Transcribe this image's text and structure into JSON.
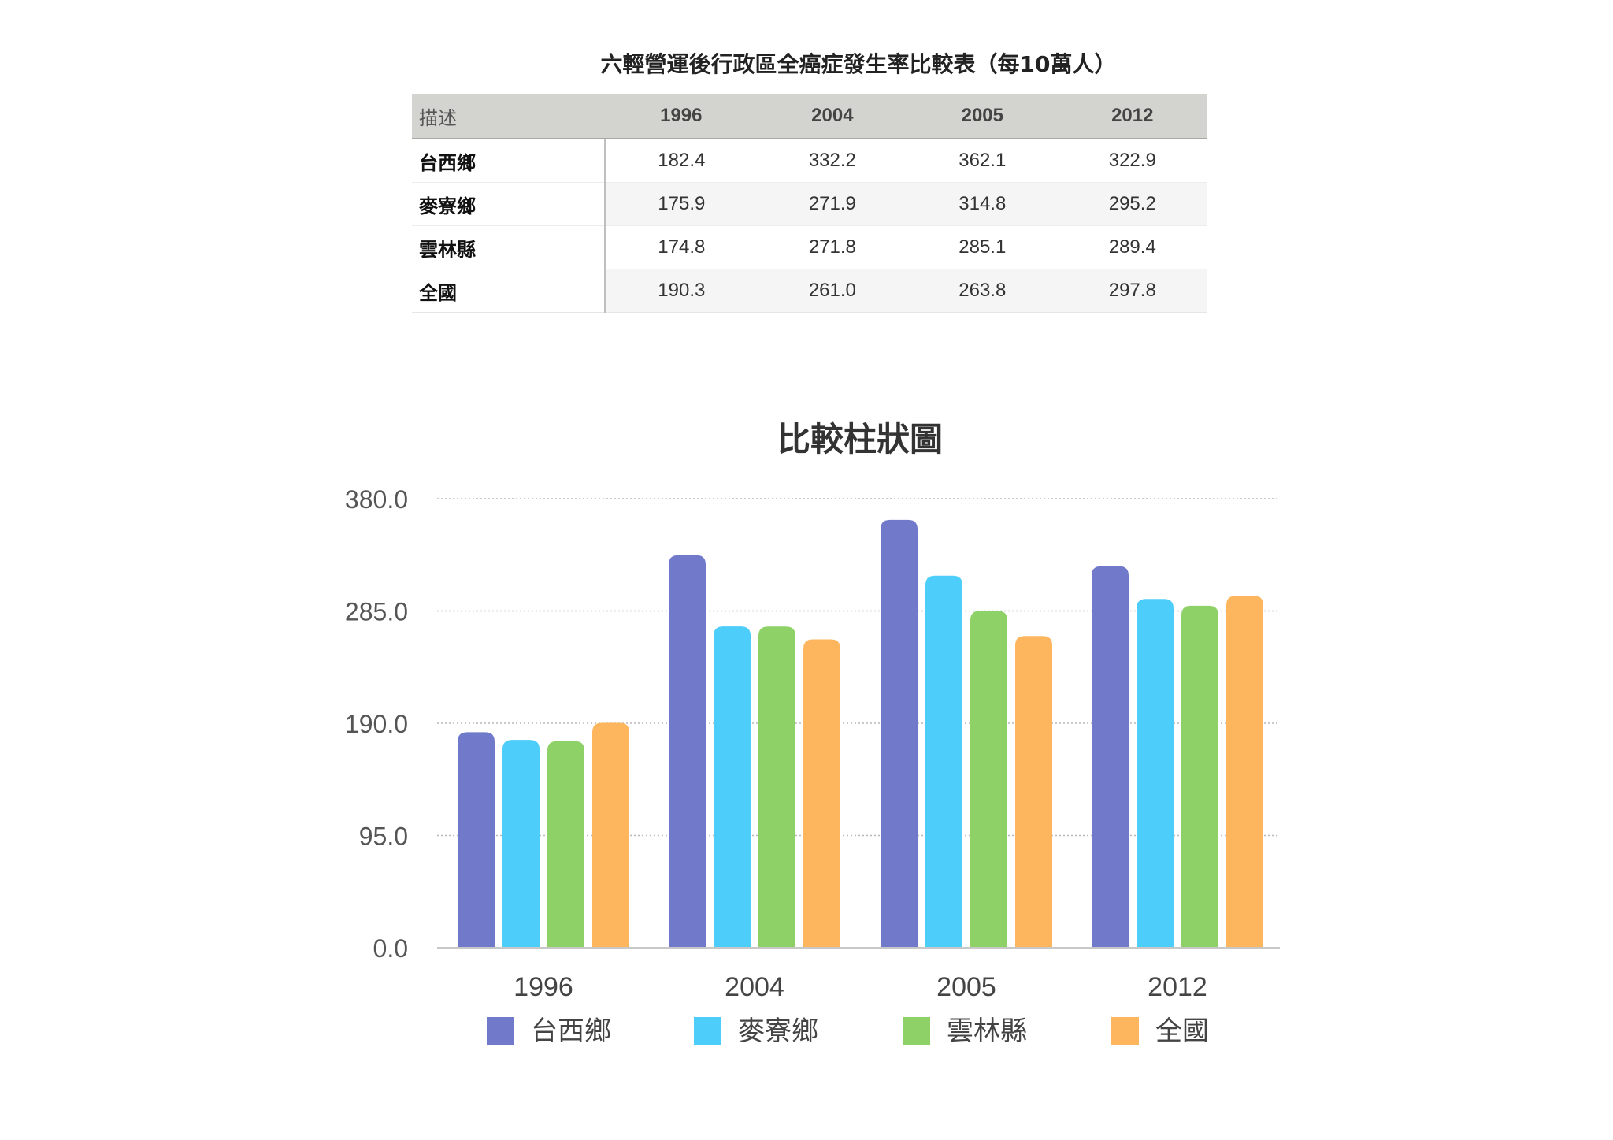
{
  "table": {
    "title": "六輕營運後行政區全癌症發生率比較表（每10萬人）",
    "header_desc": "描述",
    "years": [
      "1996",
      "2004",
      "2005",
      "2012"
    ],
    "rows": [
      {
        "label": "台西鄉",
        "values": [
          "182.4",
          "332.2",
          "362.1",
          "322.9"
        ]
      },
      {
        "label": "麥寮鄉",
        "values": [
          "175.9",
          "271.9",
          "314.8",
          "295.2"
        ]
      },
      {
        "label": "雲林縣",
        "values": [
          "174.8",
          "271.8",
          "285.1",
          "289.4"
        ]
      },
      {
        "label": "全國",
        "values": [
          "190.3",
          "261.0",
          "263.8",
          "297.8"
        ]
      }
    ]
  },
  "chart_data": {
    "type": "bar",
    "title": "比較柱狀圖",
    "categories": [
      "1996",
      "2004",
      "2005",
      "2012"
    ],
    "series": [
      {
        "name": "台西鄉",
        "values": [
          182.4,
          332.2,
          362.1,
          322.9
        ],
        "color": "#7179cb"
      },
      {
        "name": "麥寮鄉",
        "values": [
          175.9,
          271.9,
          314.8,
          295.2
        ],
        "color": "#4dcdf9"
      },
      {
        "name": "雲林縣",
        "values": [
          174.8,
          271.8,
          285.1,
          289.4
        ],
        "color": "#8dd167"
      },
      {
        "name": "全國",
        "values": [
          190.3,
          261.0,
          263.8,
          297.8
        ],
        "color": "#feb65e"
      }
    ],
    "yticks": [
      "0.0",
      "95.0",
      "190.0",
      "285.0",
      "380.0"
    ],
    "ylim": [
      0,
      380
    ],
    "grid": true,
    "legend": "bottom"
  }
}
